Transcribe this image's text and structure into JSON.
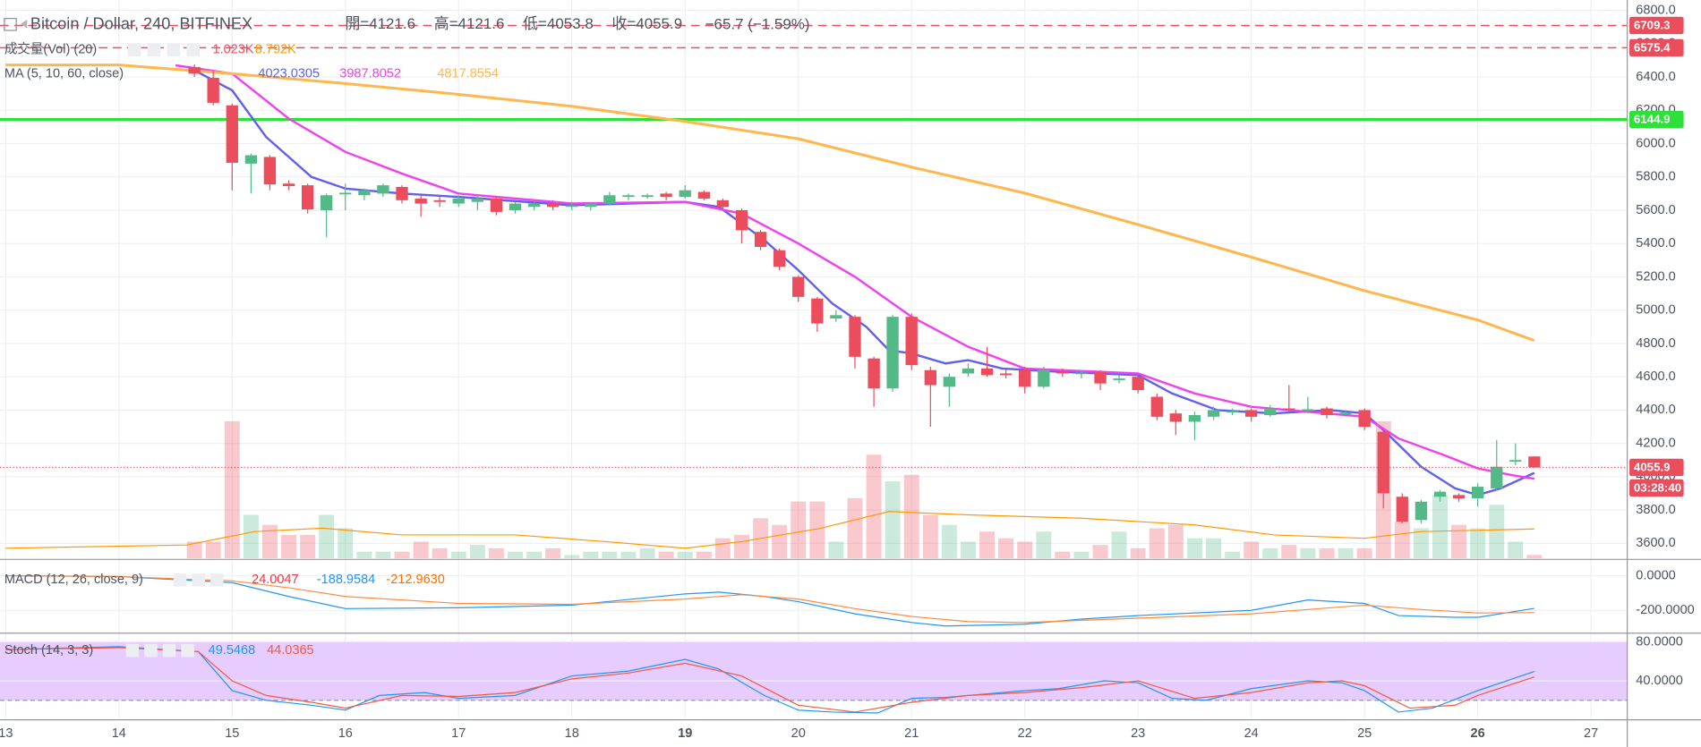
{
  "chart_data": {
    "type": "candlestick",
    "title": "Bitcoin / Dollar, 240, BITFINEX",
    "ohlc_labels": [
      "開=",
      "高=",
      "低=",
      "收="
    ],
    "change": "−65.7 (−1.59%)",
    "xlim": [
      12.95,
      27.32
    ],
    "xticks": [
      13,
      14,
      15,
      16,
      17,
      18,
      19,
      20,
      21,
      22,
      23,
      24,
      25,
      26,
      27
    ],
    "bold_xticks": [
      19,
      26
    ],
    "ylim": [
      3510,
      6862
    ],
    "yticks": [
      {
        "value": 3600,
        "label": "3600.0"
      },
      {
        "value": 3800,
        "label": "3800.0"
      },
      {
        "value": 4000,
        "label": "4000.0"
      },
      {
        "value": 4200,
        "label": "4200.0"
      },
      {
        "value": 4400,
        "label": "4400.0"
      },
      {
        "value": 4600,
        "label": "4600.0"
      },
      {
        "value": 4800,
        "label": "4800.0"
      },
      {
        "value": 5000,
        "label": "5000.0"
      },
      {
        "value": 5200,
        "label": "5200.0"
      },
      {
        "value": 5400,
        "label": "5400.0"
      },
      {
        "value": 5600,
        "label": "5600.0"
      },
      {
        "value": 5800,
        "label": "5800.0"
      },
      {
        "value": 6000,
        "label": "6000.0"
      },
      {
        "value": 6200,
        "label": "6200.0"
      },
      {
        "value": 6400,
        "label": "6400.0"
      },
      {
        "value": 6600,
        "label": "6600.0"
      },
      {
        "value": 6800,
        "label": "6800.0"
      }
    ],
    "grid": true,
    "up_color": "#53b987",
    "down_color": "#eb4d5c",
    "x": [
      14.667,
      14.833,
      15,
      15.167,
      15.333,
      15.5,
      15.667,
      15.833,
      16,
      16.167,
      16.333,
      16.5,
      16.667,
      16.833,
      17,
      17.167,
      17.333,
      17.5,
      17.667,
      17.833,
      18,
      18.167,
      18.333,
      18.5,
      18.667,
      18.833,
      19,
      19.167,
      19.333,
      19.5,
      19.667,
      19.833,
      20,
      20.167,
      20.333,
      20.5,
      20.667,
      20.833,
      21,
      21.167,
      21.333,
      21.5,
      21.667,
      21.833,
      22,
      22.167,
      22.333,
      22.5,
      22.667,
      22.833,
      23,
      23.167,
      23.333,
      23.5,
      23.667,
      23.833,
      24,
      24.167,
      24.333,
      24.5,
      24.667,
      24.833,
      25,
      25.167,
      25.333,
      25.5,
      25.667,
      25.833,
      26,
      26.167,
      26.333,
      26.5
    ],
    "open": [
      6460,
      6395,
      6230,
      5880,
      5920,
      5760,
      5750,
      5600,
      5700,
      5690,
      5700,
      5740,
      5670,
      5660,
      5640,
      5650,
      5670,
      5600,
      5620,
      5640,
      5620,
      5620,
      5640,
      5680,
      5680,
      5700,
      5680,
      5710,
      5660,
      5600,
      5470,
      5360,
      5200,
      5070,
      4950,
      4960,
      4710,
      4530,
      4960,
      4640,
      4540,
      4620,
      4650,
      4620,
      4640,
      4540,
      4630,
      4620,
      4630,
      4580,
      4600,
      4480,
      4380,
      4330,
      4360,
      4390,
      4400,
      4370,
      4410,
      4400,
      4410,
      4380,
      4400,
      4270,
      3880,
      3740,
      3880,
      3890,
      3870,
      3930,
      4090,
      4121.6
    ],
    "high": [
      6475,
      6440,
      6240,
      5940,
      5930,
      5780,
      5760,
      5700,
      5760,
      5730,
      5760,
      5750,
      5690,
      5680,
      5690,
      5690,
      5680,
      5650,
      5650,
      5660,
      5650,
      5650,
      5710,
      5700,
      5700,
      5710,
      5750,
      5720,
      5670,
      5610,
      5480,
      5370,
      5210,
      5080,
      5000,
      4970,
      4720,
      4970,
      4980,
      4660,
      4620,
      4680,
      4780,
      4650,
      4660,
      4660,
      4650,
      4640,
      4640,
      4610,
      4610,
      4500,
      4400,
      4390,
      4420,
      4410,
      4410,
      4430,
      4550,
      4480,
      4420,
      4400,
      4410,
      4280,
      3900,
      3860,
      3920,
      3900,
      3960,
      4220,
      4200,
      4121.6
    ],
    "low": [
      6400,
      6230,
      5720,
      5700,
      5720,
      5720,
      5580,
      5440,
      5600,
      5660,
      5680,
      5640,
      5560,
      5620,
      5620,
      5600,
      5570,
      5580,
      5600,
      5600,
      5600,
      5600,
      5630,
      5660,
      5670,
      5660,
      5670,
      5660,
      5600,
      5400,
      5360,
      5240,
      5050,
      4870,
      4930,
      4650,
      4420,
      4510,
      4640,
      4300,
      4420,
      4600,
      4600,
      4590,
      4500,
      4530,
      4600,
      4590,
      4520,
      4560,
      4500,
      4340,
      4250,
      4220,
      4340,
      4370,
      4330,
      4360,
      4390,
      4380,
      4350,
      4360,
      4280,
      3810,
      3720,
      3720,
      3850,
      3850,
      3820,
      3920,
      4070,
      4053.8
    ],
    "close": [
      6420,
      6245,
      5885,
      5930,
      5755,
      5745,
      5605,
      5690,
      5705,
      5720,
      5750,
      5660,
      5640,
      5650,
      5670,
      5670,
      5590,
      5640,
      5640,
      5620,
      5630,
      5640,
      5690,
      5690,
      5690,
      5680,
      5720,
      5670,
      5620,
      5480,
      5380,
      5260,
      5080,
      4920,
      4970,
      4720,
      4530,
      4960,
      4670,
      4550,
      4600,
      4650,
      4610,
      4610,
      4540,
      4640,
      4620,
      4625,
      4560,
      4590,
      4520,
      4360,
      4330,
      4370,
      4400,
      4395,
      4360,
      4410,
      4400,
      4405,
      4370,
      4385,
      4300,
      3900,
      3730,
      3850,
      3910,
      3870,
      3940,
      4060,
      4100,
      4055.9
    ],
    "volume": {
      "name": "成交量(Vol) (20)",
      "legend": [
        "1.023K",
        "8.792K"
      ],
      "legend_colors": [
        "#eb4d5c",
        "#ff9800"
      ],
      "vlim": [
        0,
        167
      ],
      "values": [
        5,
        5,
        41,
        13,
        10,
        7,
        7,
        13,
        9,
        2,
        2,
        2,
        5,
        3,
        2,
        4,
        3,
        2,
        2,
        3,
        1,
        2,
        2,
        2,
        3,
        2,
        2,
        2,
        6,
        7,
        12,
        10,
        17,
        17,
        5,
        18,
        31,
        23,
        25,
        13,
        10,
        5,
        8,
        6,
        5,
        8,
        2,
        2,
        4,
        8,
        3,
        9,
        10,
        6,
        6,
        2,
        5,
        3,
        4,
        3,
        3,
        3,
        3,
        41,
        11,
        9,
        19,
        10,
        9,
        16,
        5,
        1.023
      ],
      "ma": {
        "color": "#ff9800",
        "x": [
          13,
          14.6,
          15.2,
          15.8,
          16.5,
          17.5,
          18.3,
          19,
          19.5,
          20.2,
          20.8,
          21.5,
          22.5,
          23.5,
          24.2,
          25,
          25.5,
          26.5
        ],
        "values": [
          3,
          4,
          8,
          9,
          7,
          7,
          5,
          3,
          5,
          9,
          14,
          13,
          12,
          10,
          7,
          6,
          8,
          8.792
        ]
      }
    },
    "ma": {
      "name": "MA (5, 10, 60, close)",
      "series": [
        {
          "color": "#6060ee",
          "x": [
            14.667,
            15,
            15.3,
            15.7,
            16,
            16.5,
            17,
            18,
            19,
            19.3,
            19.7,
            20,
            20.3,
            20.6,
            20.8,
            21,
            21.3,
            21.5,
            21.8,
            22.3,
            23,
            23.3,
            23.7,
            24.2,
            24.7,
            25,
            25.2,
            25.5,
            25.8,
            26,
            26.2,
            26.5
          ],
          "values": [
            6440,
            6320,
            6040,
            5800,
            5730,
            5700,
            5680,
            5630,
            5650,
            5620,
            5420,
            5240,
            5040,
            4900,
            4760,
            4740,
            4680,
            4700,
            4650,
            4630,
            4610,
            4500,
            4400,
            4380,
            4400,
            4380,
            4260,
            4060,
            3930,
            3890,
            3930,
            4023.0305
          ]
        },
        {
          "color": "#f040f0",
          "x": [
            14.5,
            15,
            15.5,
            16,
            16.5,
            17,
            18,
            19,
            19.5,
            20,
            20.5,
            21,
            21.5,
            22,
            23,
            23.5,
            24,
            24.5,
            25,
            25.3,
            25.7,
            26,
            26.3,
            26.5
          ],
          "values": [
            6470,
            6420,
            6150,
            5950,
            5820,
            5700,
            5640,
            5650,
            5580,
            5400,
            5200,
            4960,
            4780,
            4650,
            4620,
            4500,
            4420,
            4390,
            4360,
            4230,
            4130,
            4050,
            4010,
            3987.8052
          ]
        },
        {
          "color": "#ffb74d",
          "x": [
            13,
            14,
            15,
            16,
            17,
            18,
            19,
            20,
            21,
            22,
            23,
            24,
            25,
            26,
            26.5
          ],
          "values": [
            6472,
            6472,
            6420,
            6361,
            6296,
            6224,
            6133,
            6029,
            5859,
            5703,
            5514,
            5319,
            5117,
            4941,
            4817.8554
          ]
        }
      ]
    },
    "hlines": [
      {
        "value": 6709.3,
        "color": "#eb4d5c",
        "style": "dashed"
      },
      {
        "value": 6575.4,
        "color": "#eb4d5c",
        "style": "dashed"
      },
      {
        "value": 6144.9,
        "color": "#2fe03a",
        "style": "solid"
      }
    ],
    "last_price_timer": "03:28:40",
    "macd": {
      "name": "MACD (12, 26, close, 9)",
      "legend": [
        "24.0047",
        "-188.9584",
        "-212.9630"
      ],
      "legend_colors": [
        "#f23645",
        "#2196f3",
        "#ff6d00"
      ],
      "ylim": [
        -325,
        87.5
      ],
      "yticks": [
        {
          "value": 0,
          "label": "0.0000"
        },
        {
          "value": -200,
          "label": "-200.0000"
        }
      ],
      "series": [
        {
          "color": "#2196f3",
          "x": [
            13,
            14,
            15,
            15.5,
            16,
            17,
            18,
            19,
            19.3,
            19.7,
            20,
            20.5,
            21,
            21.3,
            22,
            22.5,
            23,
            24,
            24.5,
            25,
            25.3,
            25.8,
            26,
            26.5
          ],
          "values": [
            0,
            -5,
            -40,
            -120,
            -190,
            -185,
            -170,
            -105,
            -95,
            -120,
            -150,
            -220,
            -270,
            -290,
            -280,
            -250,
            -230,
            -200,
            -140,
            -160,
            -230,
            -240,
            -240,
            -188.9584
          ]
        },
        {
          "color": "#ff8a3d",
          "x": [
            13,
            14,
            15,
            15.5,
            16,
            17,
            18,
            19,
            19.5,
            20,
            20.5,
            21,
            21.5,
            22,
            23,
            24,
            24.5,
            25,
            25.5,
            26,
            26.5
          ],
          "values": [
            0,
            -5,
            -30,
            -70,
            -120,
            -160,
            -165,
            -135,
            -110,
            -135,
            -190,
            -235,
            -265,
            -270,
            -245,
            -220,
            -195,
            -170,
            -195,
            -215,
            -212.963
          ]
        }
      ]
    },
    "stoch": {
      "name": "Stoch (14, 3, 3)",
      "ylim": [
        1.1,
        87.8
      ],
      "yticks": [
        {
          "value": 80,
          "label": "80.0000"
        },
        {
          "value": 40,
          "label": "40.0000"
        }
      ],
      "band": [
        20,
        80
      ],
      "band_color": "#e6ccff",
      "series": [
        {
          "color": "#2196f3",
          "x": [
            13,
            14,
            14.7,
            15,
            15.3,
            15.7,
            16,
            16.3,
            16.7,
            17,
            17.5,
            18,
            18.5,
            19,
            19.3,
            19.7,
            20,
            20.3,
            20.7,
            21,
            21.3,
            21.7,
            22,
            22.3,
            22.7,
            23,
            23.3,
            23.6,
            24,
            24.5,
            24.8,
            25,
            25.3,
            25.6,
            26,
            26.5
          ],
          "values": [
            72,
            75,
            70,
            30,
            20,
            15,
            10,
            25,
            28,
            22,
            25,
            45,
            50,
            62,
            52,
            25,
            10,
            8,
            7,
            22,
            23,
            27,
            30,
            32,
            40,
            38,
            22,
            20,
            32,
            40,
            38,
            30,
            8,
            12,
            30,
            49.5468
          ]
        },
        {
          "color": "#f5593d",
          "x": [
            13,
            14,
            14.7,
            15,
            15.3,
            15.7,
            16,
            16.5,
            17,
            17.5,
            18,
            18.5,
            19,
            19.5,
            20,
            20.5,
            21,
            21.5,
            22,
            22.5,
            23,
            23.5,
            24,
            24.5,
            24.8,
            25,
            25.4,
            25.8,
            26,
            26.5
          ],
          "values": [
            72,
            74,
            70,
            40,
            25,
            18,
            12,
            25,
            24,
            28,
            42,
            48,
            58,
            45,
            15,
            8,
            18,
            25,
            28,
            33,
            40,
            22,
            28,
            38,
            40,
            35,
            12,
            15,
            25,
            44.0365
          ]
        }
      ]
    }
  }
}
